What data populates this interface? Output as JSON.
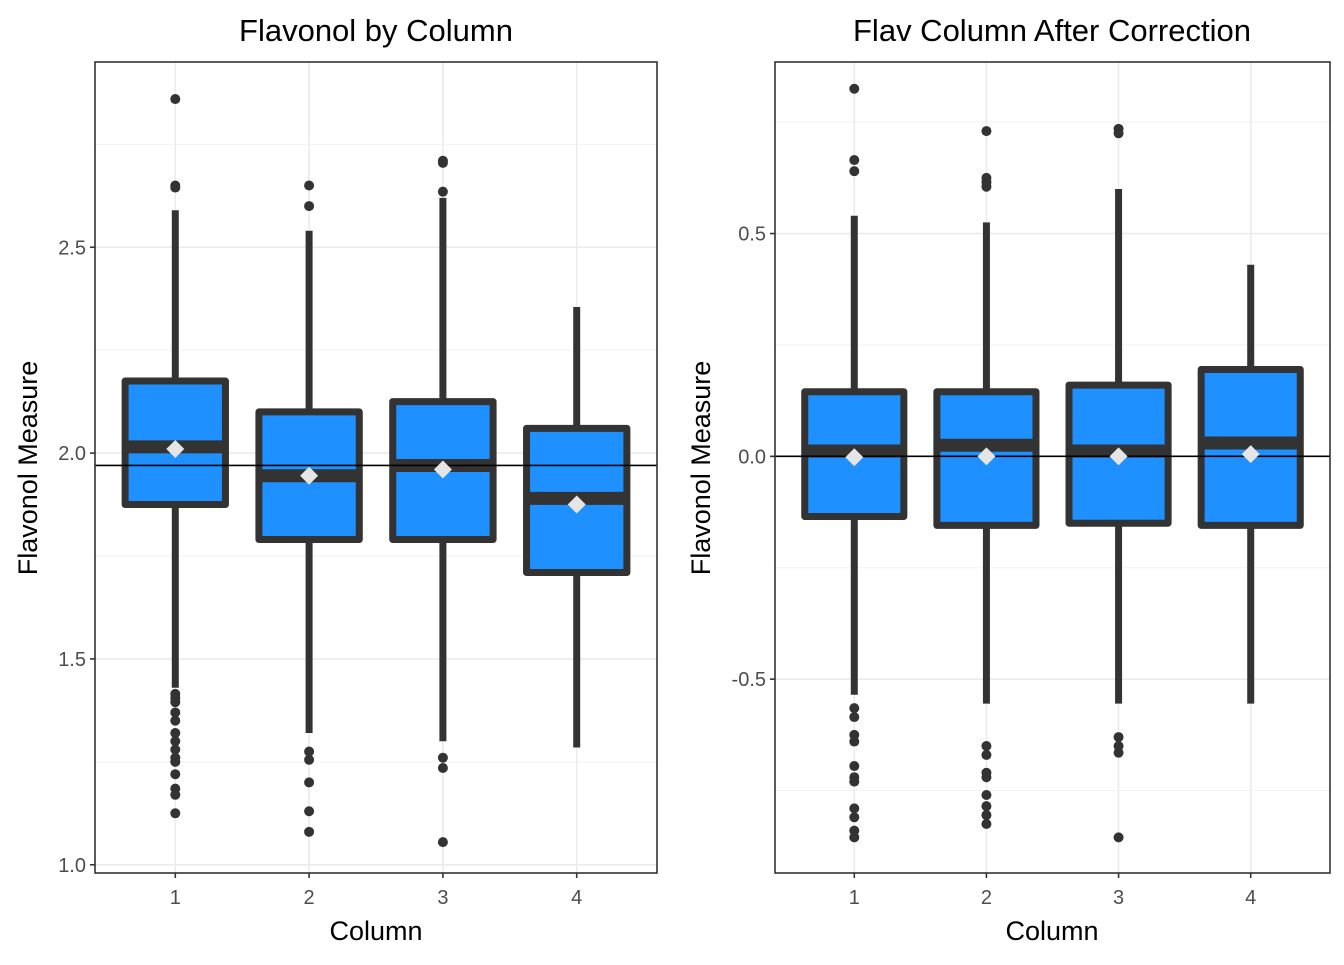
{
  "chart_data": [
    {
      "type": "box",
      "title": "Flavonol by Column",
      "xlabel": "Column",
      "ylabel": "Flavonol Measure",
      "categories": [
        "1",
        "2",
        "3",
        "4"
      ],
      "ylim": [
        0.98,
        2.95
      ],
      "yticks": [
        1.0,
        1.5,
        2.0,
        2.5
      ],
      "ytick_labels": [
        "1.0",
        "1.5",
        "2.0",
        "2.5"
      ],
      "grid": true,
      "reference_line": 1.97,
      "box_fill": "#1E90FF",
      "box_line": "#333333",
      "mean_marker_color": "#E5E5E5",
      "boxes": [
        {
          "category": "1",
          "whisker_low": 1.43,
          "q1": 1.875,
          "median": 2.015,
          "q3": 2.175,
          "whisker_high": 2.59,
          "mean": 2.01,
          "outliers": [
            2.86,
            2.65,
            2.645,
            1.415,
            1.405,
            1.395,
            1.37,
            1.35,
            1.32,
            1.3,
            1.28,
            1.26,
            1.25,
            1.22,
            1.185,
            1.17,
            1.125
          ]
        },
        {
          "category": "2",
          "whisker_low": 1.32,
          "q1": 1.79,
          "median": 1.945,
          "q3": 2.1,
          "whisker_high": 2.54,
          "mean": 1.945,
          "outliers": [
            2.65,
            2.6,
            1.275,
            1.255,
            1.2,
            1.13,
            1.08
          ]
        },
        {
          "category": "3",
          "whisker_low": 1.3,
          "q1": 1.79,
          "median": 1.97,
          "q3": 2.125,
          "whisker_high": 2.62,
          "mean": 1.96,
          "outliers": [
            2.71,
            2.705,
            2.635,
            1.26,
            1.235,
            1.055
          ]
        },
        {
          "category": "4",
          "whisker_low": 1.285,
          "q1": 1.71,
          "median": 1.89,
          "q3": 2.06,
          "whisker_high": 2.355,
          "mean": 1.875,
          "outliers": []
        }
      ]
    },
    {
      "type": "box",
      "title": "Flav Column After Correction",
      "xlabel": "Column",
      "ylabel": "Flavonol Measure",
      "categories": [
        "1",
        "2",
        "3",
        "4"
      ],
      "ylim": [
        -0.935,
        0.885
      ],
      "yticks": [
        -0.5,
        0.0,
        0.5
      ],
      "ytick_labels": [
        "-0.5",
        "0.0",
        "0.5"
      ],
      "grid": true,
      "reference_line": 0.0,
      "box_fill": "#1E90FF",
      "box_line": "#333333",
      "mean_marker_color": "#E5E5E5",
      "boxes": [
        {
          "category": "1",
          "whisker_low": -0.535,
          "q1": -0.135,
          "median": 0.012,
          "q3": 0.145,
          "whisker_high": 0.54,
          "mean": -0.002,
          "outliers": [
            0.825,
            0.665,
            0.64,
            -0.565,
            -0.585,
            -0.625,
            -0.64,
            -0.695,
            -0.72,
            -0.73,
            -0.79,
            -0.81,
            -0.84,
            -0.855
          ]
        },
        {
          "category": "2",
          "whisker_low": -0.555,
          "q1": -0.155,
          "median": 0.025,
          "q3": 0.145,
          "whisker_high": 0.525,
          "mean": 0.0,
          "outliers": [
            0.73,
            0.625,
            0.615,
            0.605,
            -0.65,
            -0.67,
            -0.71,
            -0.72,
            -0.76,
            -0.785,
            -0.805,
            -0.825
          ]
        },
        {
          "category": "3",
          "whisker_low": -0.555,
          "q1": -0.15,
          "median": 0.012,
          "q3": 0.16,
          "whisker_high": 0.6,
          "mean": 0.0,
          "outliers": [
            0.735,
            0.725,
            -0.63,
            -0.65,
            -0.665,
            -0.855
          ]
        },
        {
          "category": "4",
          "whisker_low": -0.555,
          "q1": -0.155,
          "median": 0.03,
          "q3": 0.195,
          "whisker_high": 0.43,
          "mean": 0.005,
          "outliers": []
        }
      ]
    }
  ]
}
